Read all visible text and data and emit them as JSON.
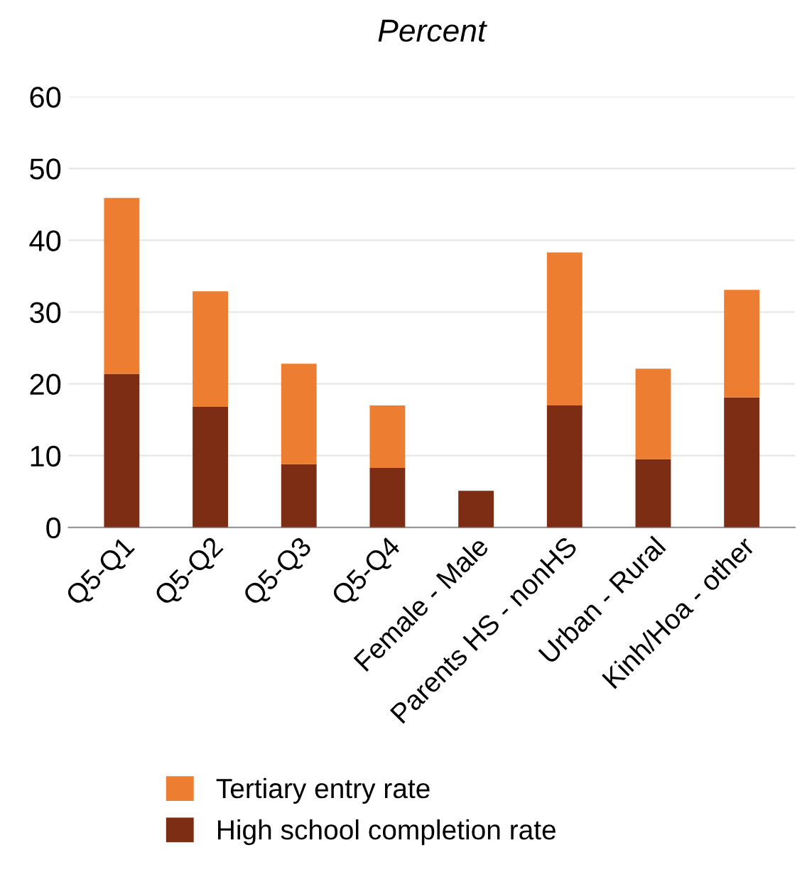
{
  "chart_data": {
    "type": "bar",
    "title": "Percent",
    "stacked": true,
    "categories": [
      "Q5-Q1",
      "Q5-Q2",
      "Q5-Q3",
      "Q5-Q4",
      "Female - Male",
      "Parents HS - nonHS",
      "Urban - Rural",
      "Kinh/Hoa - other"
    ],
    "series": [
      {
        "name": "High school completion rate",
        "color": "#7e2d15",
        "values": [
          21.4,
          16.8,
          8.8,
          8.3,
          5.1,
          17.0,
          9.5,
          18.1
        ]
      },
      {
        "name": "Tertiary entry rate",
        "color": "#ed7d31",
        "values": [
          24.5,
          16.1,
          14.0,
          8.7,
          0,
          21.3,
          12.6,
          15.0
        ]
      }
    ],
    "ylim": [
      0,
      60
    ],
    "yticks": [
      0,
      10,
      20,
      30,
      40,
      50,
      60
    ],
    "grid": "y",
    "legend": "bottom"
  }
}
